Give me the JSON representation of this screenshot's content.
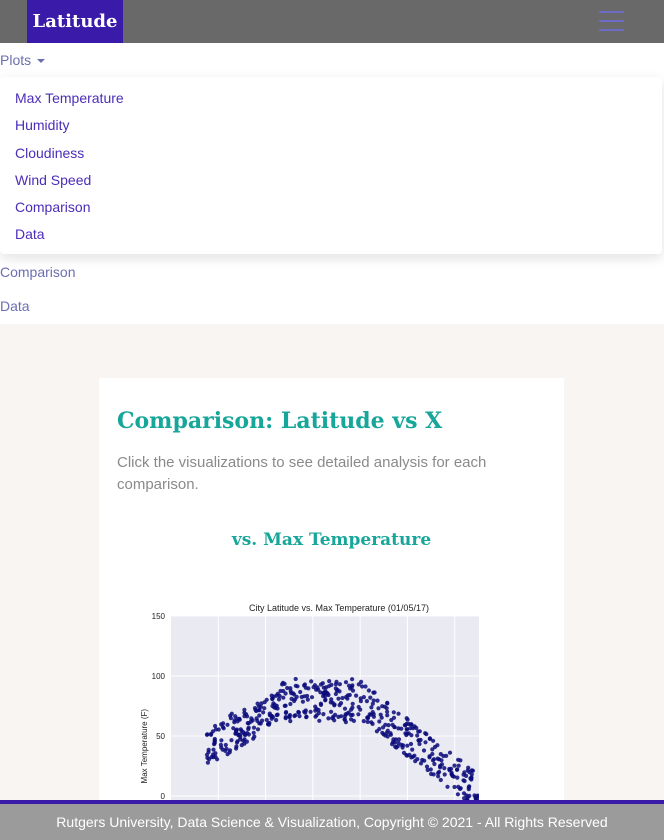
{
  "brand": "Latitude",
  "nav": {
    "plots_label": "Plots",
    "comparison_label": "Comparison",
    "data_label": "Data"
  },
  "dropdown": {
    "items": [
      "Max Temperature",
      "Humidity",
      "Cloudiness",
      "Wind Speed",
      "Comparison",
      "Data"
    ]
  },
  "card": {
    "title": "Comparison: Latitude vs X",
    "description": "Click the visualizations to see detailed analysis for each comparison.",
    "section_title": "vs. Max Temperature"
  },
  "chart_data": {
    "type": "scatter",
    "title": "City Latitude vs. Max Temperature (01/05/17)",
    "ylabel": "Max Temperature (F)",
    "yticks": [
      150,
      100,
      50,
      0
    ],
    "ylim": [
      -25,
      150
    ],
    "xlim": [
      -60,
      80
    ],
    "grid": true,
    "point_color": "#0a0a7a"
  },
  "footer": {
    "text": "Rutgers University, Data Science & Visualization, Copyright © 2021 - All Rights Reserved"
  }
}
